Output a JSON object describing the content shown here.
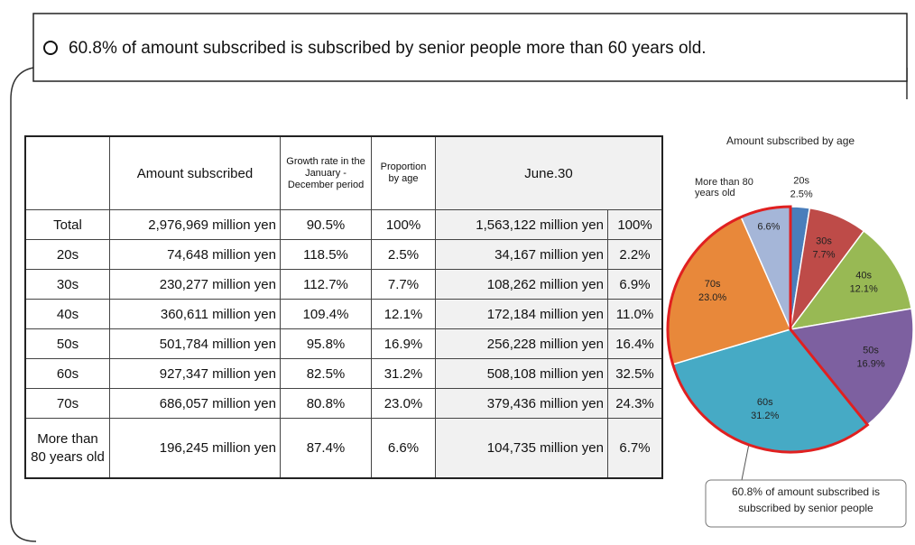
{
  "headline": "60.8% of amount subscribed is subscribed by senior people more than 60 years old.",
  "table": {
    "header": [
      "Amount subscribed",
      "Growth rate in the January - December period",
      "Proportion by age",
      "June.30"
    ],
    "rows": [
      [
        "Total",
        "2,976,969 million yen",
        "90.5%",
        "100%",
        "1,563,122 million yen",
        "100%"
      ],
      [
        "20s",
        "74,648 million yen",
        "118.5%",
        "2.5%",
        "34,167 million yen",
        "2.2%"
      ],
      [
        "30s",
        "230,277 million yen",
        "112.7%",
        "7.7%",
        "108,262 million yen",
        "6.9%"
      ],
      [
        "40s",
        "360,611 million yen",
        "109.4%",
        "12.1%",
        "172,184 million yen",
        "11.0%"
      ],
      [
        "50s",
        "501,784 million yen",
        "95.8%",
        "16.9%",
        "256,228 million yen",
        "16.4%"
      ],
      [
        "60s",
        "927,347 million yen",
        "82.5%",
        "31.2%",
        "508,108 million yen",
        "32.5%"
      ],
      [
        "70s",
        "686,057 million yen",
        "80.8%",
        "23.0%",
        "379,436 million yen",
        "24.3%"
      ],
      [
        "More than 80 years old",
        "196,245 million yen",
        "87.4%",
        "6.6%",
        "104,735 million yen",
        "6.7%"
      ]
    ]
  },
  "chart_data": {
    "type": "pie",
    "title": "Amount subscribed by age",
    "categories": [
      "20s",
      "30s",
      "40s",
      "50s",
      "60s",
      "70s",
      "More than 80 years old"
    ],
    "values": [
      2.5,
      7.7,
      12.1,
      16.9,
      31.2,
      23.0,
      6.6
    ],
    "value_labels": [
      "2.5%",
      "7.7%",
      "12.1%",
      "16.9%",
      "31.2%",
      "23.0%",
      "6.6%"
    ],
    "colors": [
      "#4a7ebb",
      "#be4b48",
      "#98b954",
      "#7d60a0",
      "#46aac5",
      "#e8883a",
      "#a5b6d8"
    ],
    "highlight_color": "#e02020",
    "annotation": "60.8% of amount subscribed is subscribed by senior people"
  }
}
